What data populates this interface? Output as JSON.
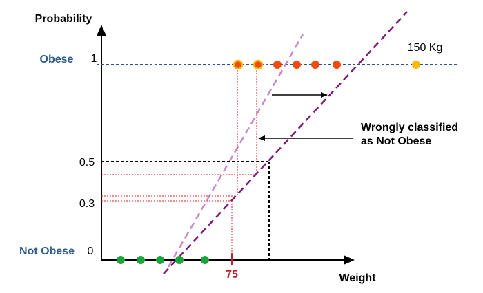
{
  "chart_data": {
    "type": "scatter",
    "title": "",
    "xlabel": "Weight",
    "ylabel": "Probability",
    "class_labels": {
      "top": "Obese",
      "bottom": "Not Obese"
    },
    "y_ticks": [
      "1",
      "0.5",
      "0.3",
      "0"
    ],
    "x_marker_label": "75",
    "point_label_150": "150 Kg",
    "annotation_wrong": [
      "Wrongly classified",
      "as Not Obese"
    ],
    "colors": {
      "not_obese_point": "#1aa53a",
      "obese_point": "#f04a0c",
      "outlier_point": "#f7b90c",
      "class_line": "#2b4f9e",
      "fit_line_old": "#c889c8",
      "fit_line_new": "#7a1a7a",
      "guide_red": "#e01818",
      "threshold": "#000000",
      "class_label_text": "#2e5d8e",
      "marker_text": "#c0202a"
    }
  }
}
